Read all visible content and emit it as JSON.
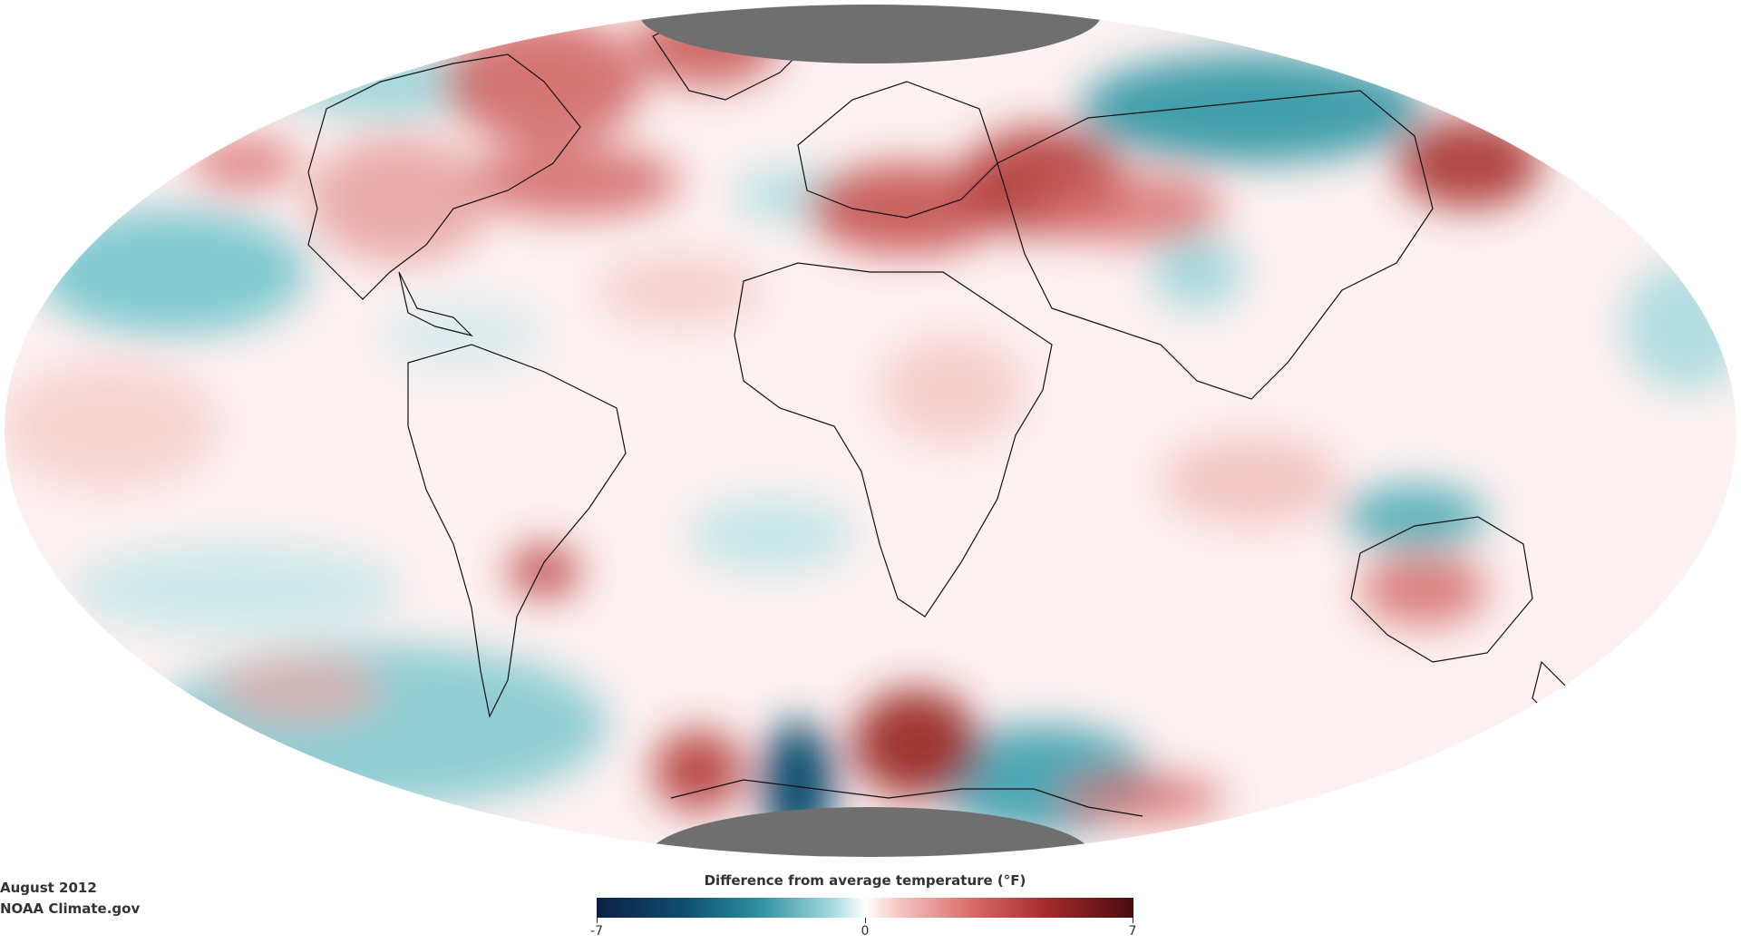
{
  "caption": {
    "date": "August 2012",
    "source": "NOAA Climate.gov"
  },
  "legend": {
    "title": "Difference from average temperature (°F)",
    "min_label": "-7",
    "mid_label": "0",
    "max_label": "7",
    "min_value": -7,
    "max_value": 7,
    "colors": {
      "cold_extreme": "#0c2044",
      "cold": "#2d8f9e",
      "neutral": "#ffffff",
      "warm": "#d86a66",
      "warm_extreme": "#4a0b0d"
    }
  },
  "map": {
    "projection": "Mollweide",
    "no_data_color": "#6f6f6f"
  }
}
